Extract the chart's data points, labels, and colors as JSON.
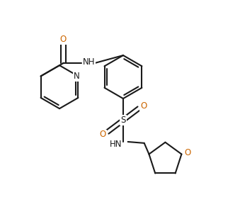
{
  "bg_color": "#ffffff",
  "line_color": "#1a1a1a",
  "O_color": "#cc6600",
  "line_width": 1.5,
  "figsize": [
    3.39,
    3.16
  ],
  "dpi": 100,
  "xlim": [
    0,
    9
  ],
  "ylim": [
    0,
    8.5
  ]
}
